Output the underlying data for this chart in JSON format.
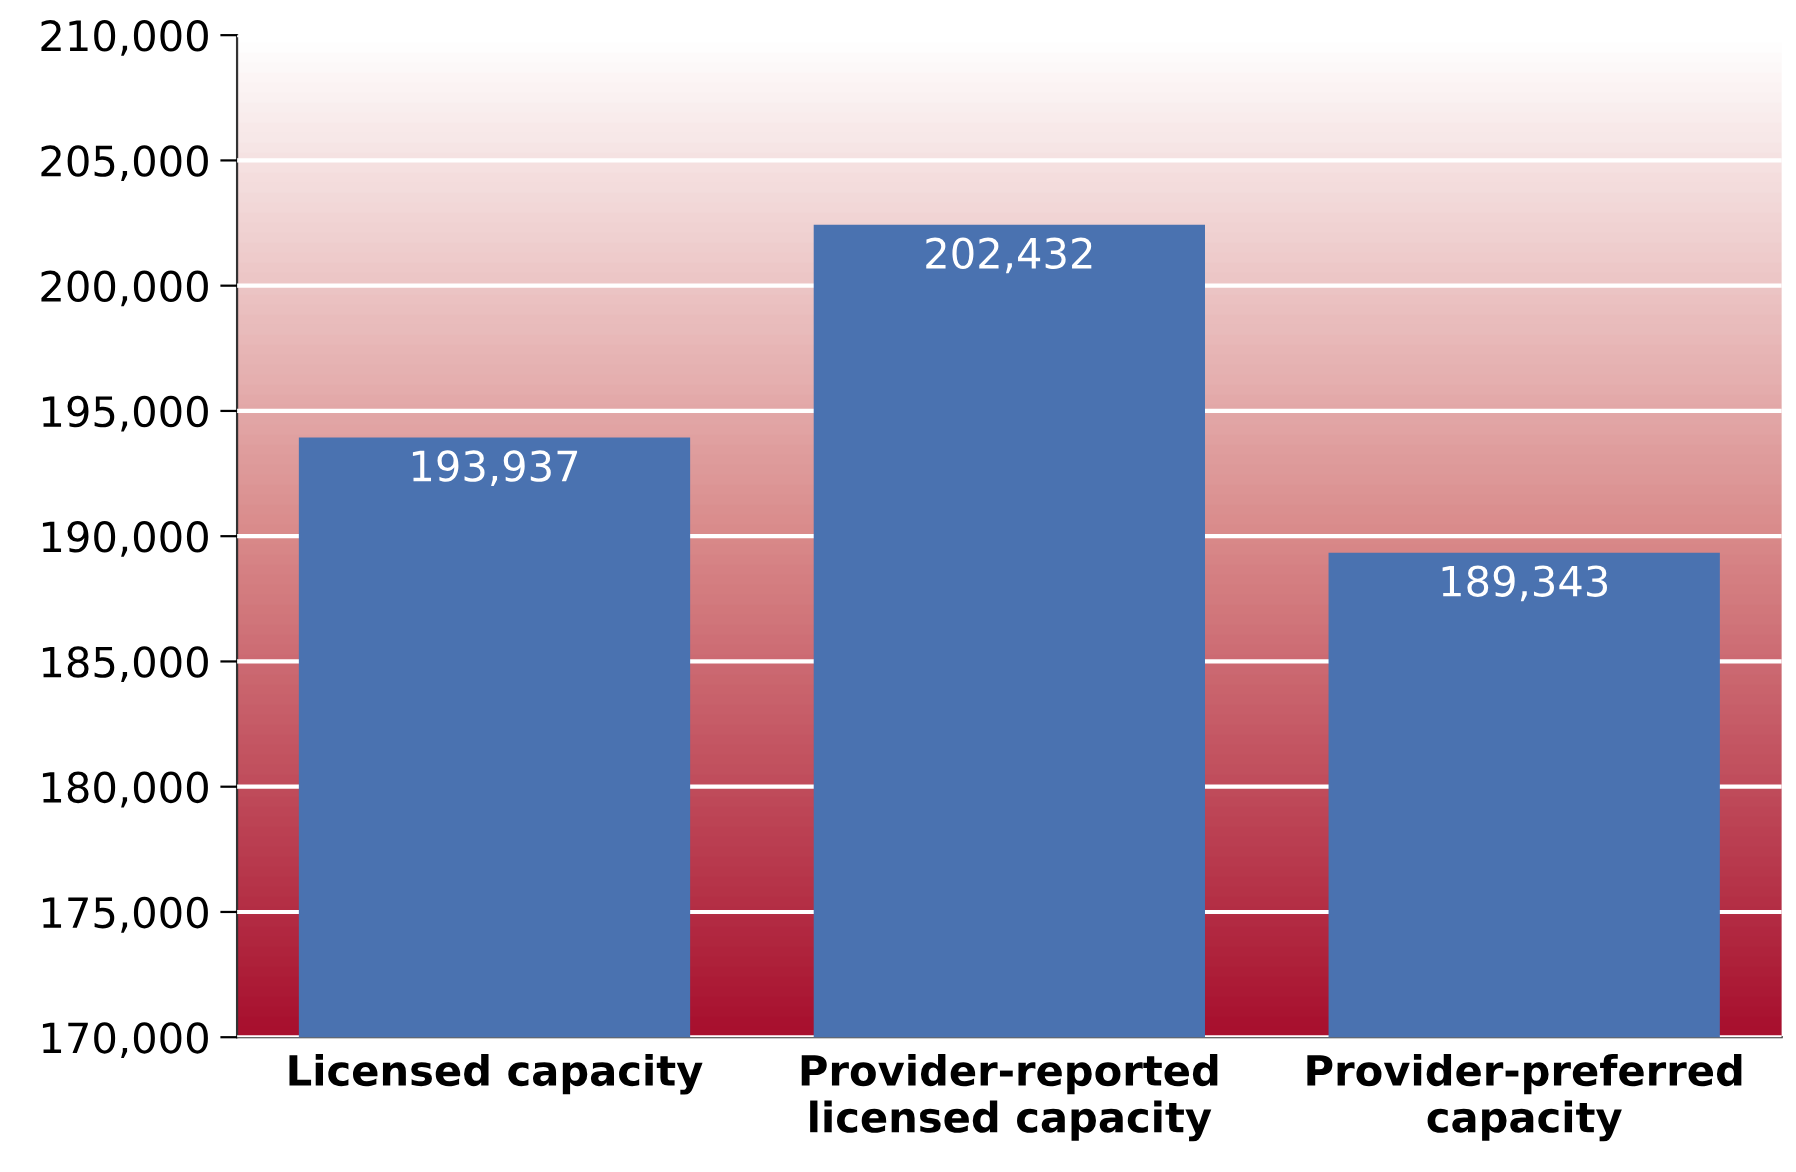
{
  "chart_data": {
    "type": "bar",
    "categories": [
      "Licensed capacity",
      "Provider-reported\nlicensed capacity",
      "Provider-preferred\ncapacity"
    ],
    "values": [
      193937,
      202432,
      189343
    ],
    "value_labels": [
      "193,937",
      "202,432",
      "189,343"
    ],
    "color": "#4a72b0",
    "ylim": [
      170000,
      210000
    ],
    "yticks": [
      {
        "value": 170000,
        "label": "170,000"
      },
      {
        "value": 175000,
        "label": "175,000"
      },
      {
        "value": 180000,
        "label": "180,000"
      },
      {
        "value": 185000,
        "label": "185,000"
      },
      {
        "value": 190000,
        "label": "190,000"
      },
      {
        "value": 195000,
        "label": "195,000"
      },
      {
        "value": 200000,
        "label": "200,000"
      },
      {
        "value": 205000,
        "label": "205,000"
      },
      {
        "value": 210000,
        "label": "210,000"
      }
    ],
    "grid": "y"
  }
}
